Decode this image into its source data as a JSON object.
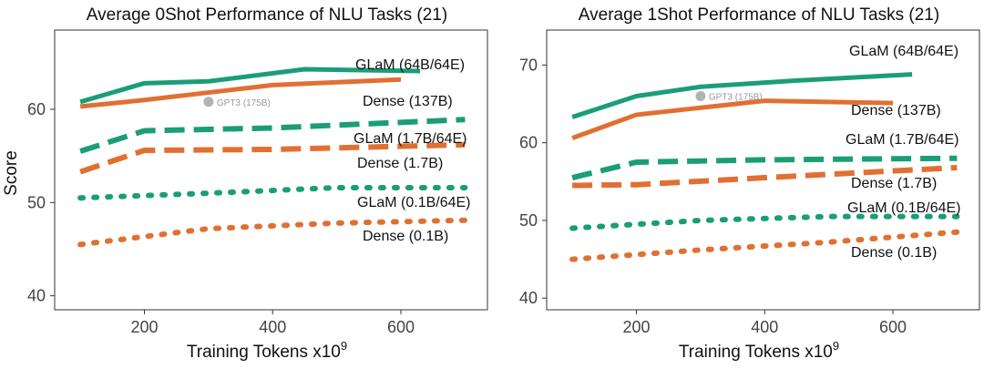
{
  "colors": {
    "glam": "#1a9e77",
    "dense": "#e07032",
    "gpt3": "#b3b3b3",
    "frame": "#333333"
  },
  "chart_data": [
    {
      "type": "line",
      "title": "Average 0Shot Performance of NLU Tasks (21)",
      "xlabel": "Training Tokens x10",
      "xlabel_sup": "9",
      "ylabel": "Score",
      "xlim": [
        60,
        735
      ],
      "ylim": [
        38.5,
        68.5
      ],
      "xticks": [
        200,
        400,
        600
      ],
      "yticks": [
        40,
        50,
        60
      ],
      "series": [
        {
          "name": "GLaM (64B/64E)",
          "family": "glam",
          "style": "solid",
          "x": [
            100,
            200,
            300,
            450,
            630
          ],
          "y": [
            60.8,
            62.8,
            63.0,
            64.3,
            64.1
          ]
        },
        {
          "name": "Dense (137B)",
          "family": "dense",
          "style": "solid",
          "x": [
            100,
            200,
            300,
            400,
            600
          ],
          "y": [
            60.3,
            61.0,
            61.8,
            62.6,
            63.2
          ]
        },
        {
          "name": "GLaM (1.7B/64E)",
          "family": "glam",
          "style": "dashed",
          "x": [
            100,
            200,
            400,
            700
          ],
          "y": [
            55.5,
            57.7,
            58.0,
            58.9
          ]
        },
        {
          "name": "Dense (1.7B)",
          "family": "dense",
          "style": "dashed",
          "x": [
            100,
            200,
            400,
            700
          ],
          "y": [
            53.3,
            55.6,
            55.7,
            56.2
          ]
        },
        {
          "name": "GLaM (0.1B/64E)",
          "family": "glam",
          "style": "dotted",
          "x": [
            100,
            300,
            500,
            700
          ],
          "y": [
            50.5,
            51.0,
            51.6,
            51.6
          ]
        },
        {
          "name": "Dense (0.1B)",
          "family": "dense",
          "style": "dotted",
          "x": [
            100,
            300,
            500,
            700
          ],
          "y": [
            45.5,
            47.2,
            47.8,
            48.1
          ]
        }
      ],
      "annotation": {
        "text": "GPT3 (175B)",
        "x": 300,
        "y": 60.8
      }
    },
    {
      "type": "line",
      "title": "Average 1Shot Performance of NLU Tasks (21)",
      "xlabel": "Training Tokens x10",
      "xlabel_sup": "9",
      "ylabel": "",
      "xlim": [
        60,
        735
      ],
      "ylim": [
        38.5,
        74.5
      ],
      "xticks": [
        200,
        400,
        600
      ],
      "yticks": [
        40,
        50,
        60,
        70
      ],
      "series": [
        {
          "name": "GLaM (64B/64E)",
          "family": "glam",
          "style": "solid",
          "x": [
            100,
            200,
            300,
            450,
            630
          ],
          "y": [
            63.3,
            66.0,
            67.2,
            68.0,
            68.8
          ]
        },
        {
          "name": "Dense (137B)",
          "family": "dense",
          "style": "solid",
          "x": [
            100,
            200,
            300,
            400,
            600
          ],
          "y": [
            60.6,
            63.6,
            64.5,
            65.4,
            65.1
          ]
        },
        {
          "name": "GLaM (1.7B/64E)",
          "family": "glam",
          "style": "dashed",
          "x": [
            100,
            200,
            400,
            700
          ],
          "y": [
            55.5,
            57.5,
            57.8,
            58.0
          ]
        },
        {
          "name": "Dense (1.7B)",
          "family": "dense",
          "style": "dashed",
          "x": [
            100,
            200,
            400,
            700
          ],
          "y": [
            54.5,
            54.6,
            55.5,
            56.8
          ]
        },
        {
          "name": "GLaM (0.1B/64E)",
          "family": "glam",
          "style": "dotted",
          "x": [
            100,
            300,
            500,
            700
          ],
          "y": [
            49.0,
            50.0,
            50.5,
            50.5
          ]
        },
        {
          "name": "Dense (0.1B)",
          "family": "dense",
          "style": "dotted",
          "x": [
            100,
            300,
            500,
            700
          ],
          "y": [
            45.0,
            46.2,
            47.2,
            48.5
          ]
        }
      ],
      "annotation": {
        "text": "GPT3 (175B)",
        "x": 300,
        "y": 66.0
      }
    }
  ]
}
